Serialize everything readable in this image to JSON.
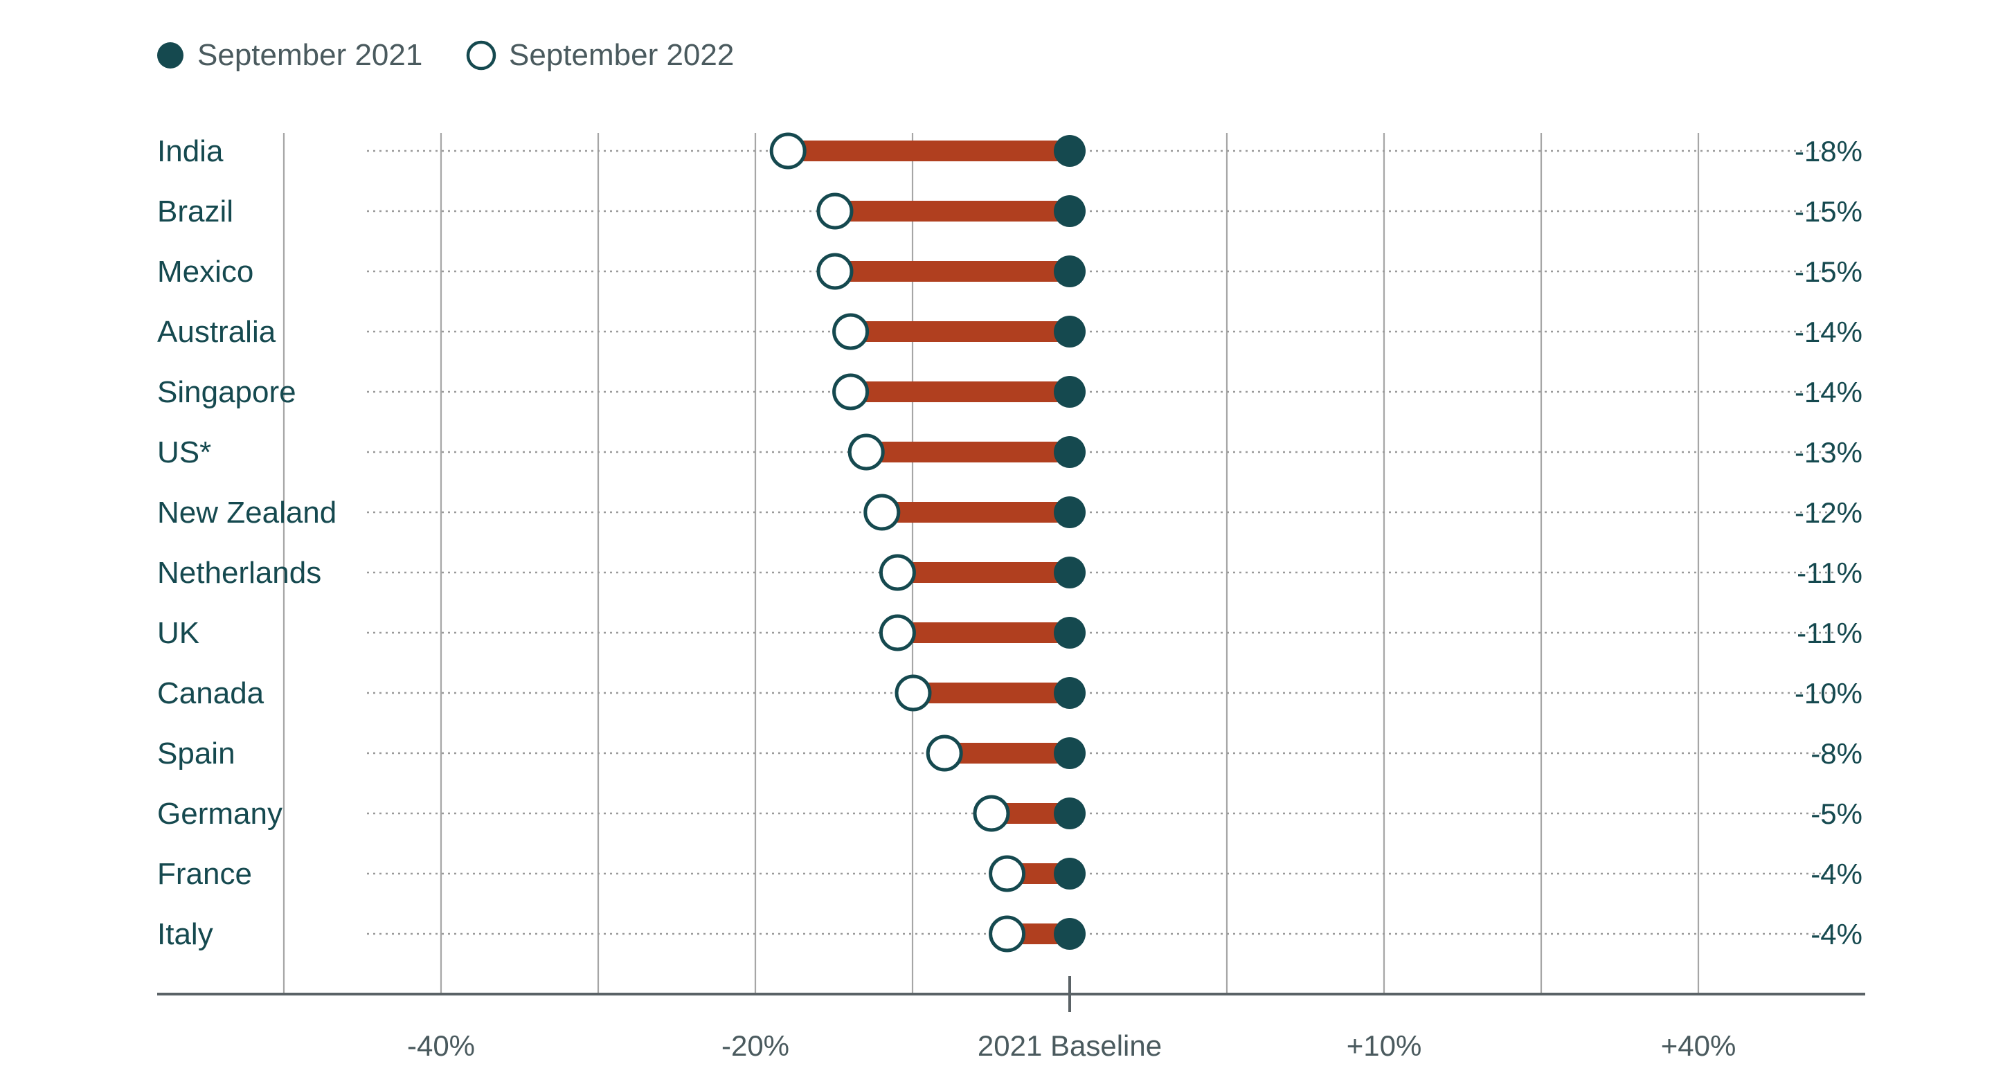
{
  "legend": {
    "items": [
      {
        "label": "September 2021",
        "marker": "filled"
      },
      {
        "label": "September 2022",
        "marker": "hollow"
      }
    ]
  },
  "colors": {
    "dark": "#15494f",
    "bar": "#b03f1f",
    "grid": "#a6a6a6",
    "dots": "#9a9a9a",
    "axis": "#5a6266",
    "text": "#15494f",
    "muted": "#4a5a5e"
  },
  "chart_data": {
    "type": "dumbbell",
    "xlabel": "",
    "ylabel": "",
    "tick_labels": [
      {
        "pos": -4,
        "label": "-40%"
      },
      {
        "pos": -2,
        "label": "-20%"
      },
      {
        "pos": 0,
        "label": "2021 Baseline"
      },
      {
        "pos": 2,
        "label": "+10%"
      },
      {
        "pos": 4,
        "label": "+40%"
      }
    ],
    "categories": [
      "India",
      "Brazil",
      "Mexico",
      "Australia",
      "Singapore",
      "US*",
      "New Zealand",
      "Netherlands",
      "UK",
      "Canada",
      "Spain",
      "Germany",
      "France",
      "Italy"
    ],
    "series": [
      {
        "name": "September 2021",
        "values": [
          0,
          0,
          0,
          0,
          0,
          0,
          0,
          0,
          0,
          0,
          0,
          0,
          0,
          0
        ]
      },
      {
        "name": "September 2022",
        "values": [
          -18,
          -15,
          -15,
          -14,
          -14,
          -13,
          -12,
          -11,
          -11,
          -10,
          -8,
          -5,
          -4,
          -4
        ]
      }
    ],
    "value_labels": [
      "-18%",
      "-15%",
      "-15%",
      "-14%",
      "-14%",
      "-13%",
      "-12%",
      "-11%",
      "-11%",
      "-10%",
      "-8%",
      "-5%",
      "-4%",
      "-4%"
    ],
    "grid": true,
    "legend_position": "top-left"
  }
}
